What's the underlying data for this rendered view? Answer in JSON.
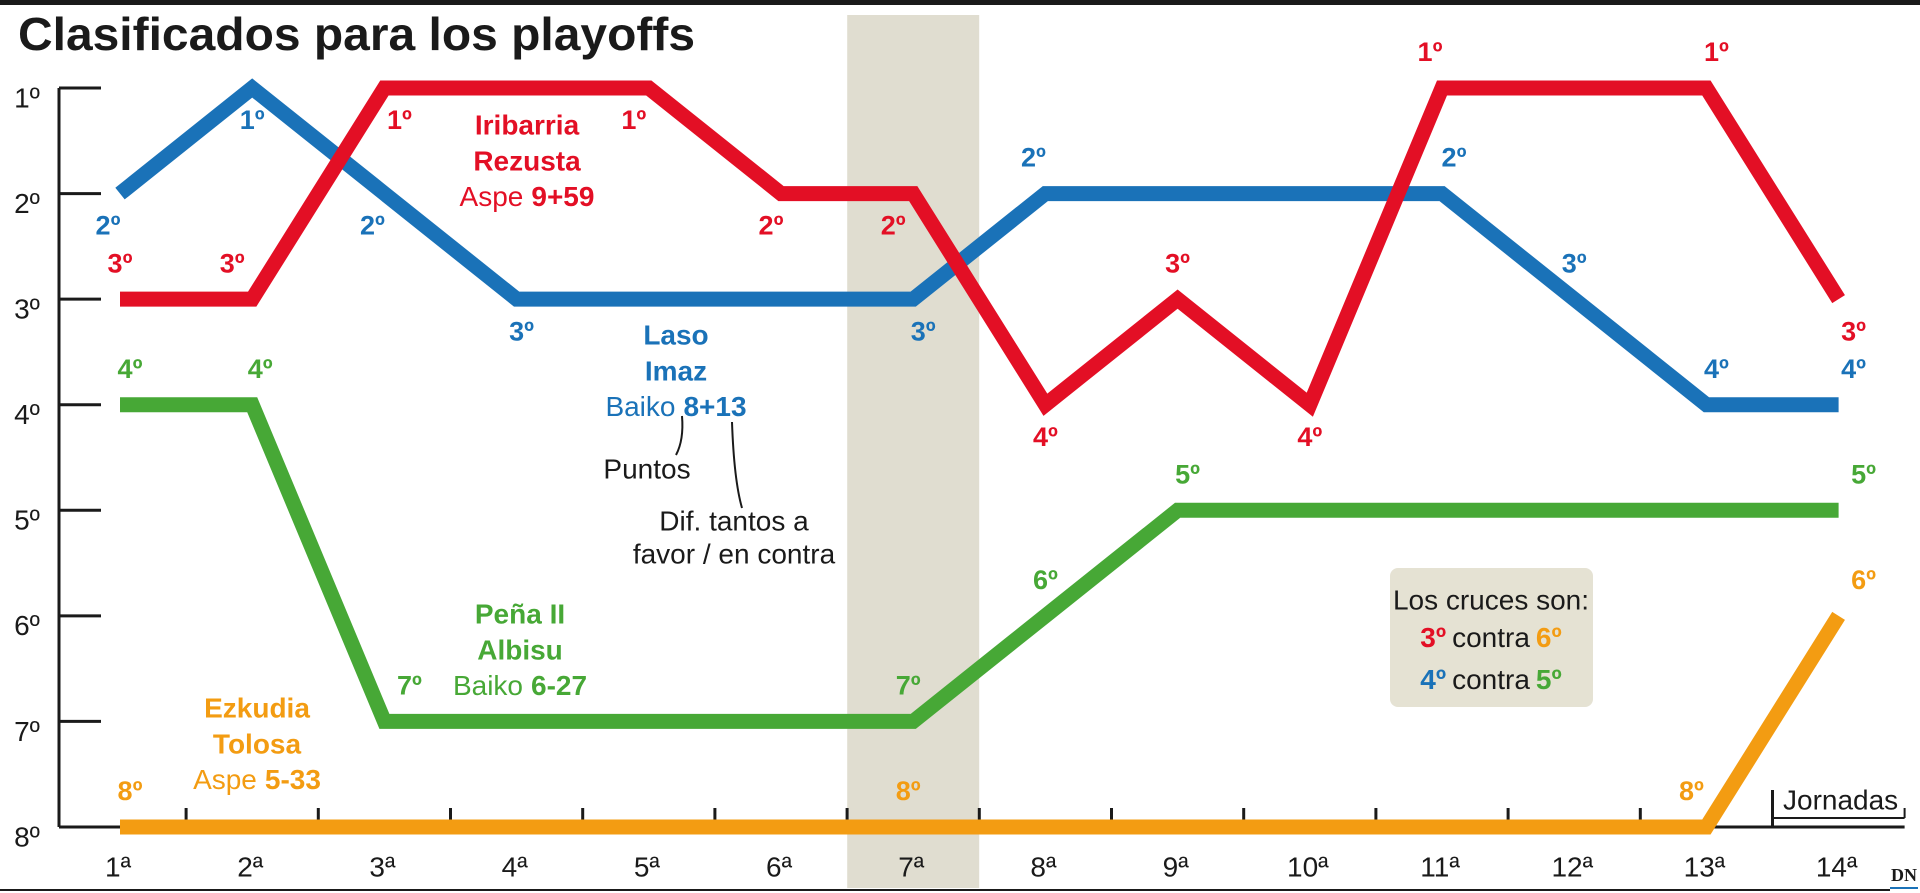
{
  "chart_data": {
    "type": "line",
    "title": "Clasificados para los playoffs",
    "x_label": "Jornadas",
    "categories": [
      "1ª",
      "2ª",
      "3ª",
      "4ª",
      "5ª",
      "6ª",
      "7ª",
      "8ª",
      "9ª",
      "10ª",
      "11ª",
      "12ª",
      "13ª",
      "14ª"
    ],
    "highlight_index": 6,
    "ylim": [
      8,
      1
    ],
    "yticks": [
      {
        "value": 1,
        "label": "1º"
      },
      {
        "value": 2,
        "label": "2º"
      },
      {
        "value": 3,
        "label": "3º"
      },
      {
        "value": 4,
        "label": "4º"
      },
      {
        "value": 5,
        "label": "5º"
      },
      {
        "value": 6,
        "label": "6º"
      },
      {
        "value": 7,
        "label": "7º"
      },
      {
        "value": 8,
        "label": "8º"
      }
    ],
    "series": [
      {
        "name_lines": [
          "Iribarria",
          "Rezusta"
        ],
        "team": "Aspe",
        "score": "9+59",
        "color": "#e30f25",
        "values": [
          3,
          3,
          1,
          1,
          1,
          2,
          2,
          4,
          3,
          4,
          1,
          1,
          1,
          3
        ],
        "value_labels": [
          "3º",
          "3º",
          "1º",
          null,
          "1º",
          "2º",
          "2º",
          "4º",
          "3º",
          "4º",
          "1º",
          null,
          "1º",
          "3º"
        ]
      },
      {
        "name_lines": [
          "Laso",
          "Imaz"
        ],
        "team": "Baiko",
        "score": "8+13",
        "color": "#1a72b8",
        "values": [
          2,
          1,
          2,
          3,
          3,
          3,
          3,
          2,
          2,
          2,
          2,
          3,
          4,
          4
        ],
        "value_labels": [
          "2º",
          "1º",
          "2º",
          "3º",
          null,
          null,
          "3º",
          "2º",
          null,
          null,
          "2º",
          "3º",
          "4º",
          "4º"
        ]
      },
      {
        "name_lines": [
          "Peña II",
          "Albisu"
        ],
        "team": "Baiko",
        "score": "6-27",
        "color": "#47a836",
        "values": [
          4,
          4,
          7,
          7,
          7,
          7,
          7,
          6,
          5,
          5,
          5,
          5,
          5,
          5
        ],
        "value_labels": [
          "4º",
          "4º",
          "7º",
          null,
          null,
          null,
          "7º",
          "6º",
          "5º",
          null,
          null,
          null,
          null,
          "5º"
        ]
      },
      {
        "name_lines": [
          "Ezkudia",
          "Tolosa"
        ],
        "team": "Aspe",
        "score": "5-33",
        "color": "#f39c12",
        "values": [
          8,
          8,
          8,
          8,
          8,
          8,
          8,
          8,
          8,
          8,
          8,
          8,
          8,
          6
        ],
        "value_labels": [
          "8º",
          null,
          null,
          null,
          null,
          null,
          "8º",
          null,
          null,
          null,
          null,
          null,
          "8º",
          "6º"
        ]
      }
    ],
    "annotations": {
      "points": "Puntos",
      "diff_lines": [
        "Dif. tantos a",
        "favor / en contra"
      ]
    },
    "crosses": {
      "title": "Los cruces son:",
      "rows": [
        [
          "3º",
          "contra",
          "6º"
        ],
        [
          "4º",
          "contra",
          "5º"
        ]
      ],
      "row_colors": [
        [
          "#e30f25",
          "#f39c12"
        ],
        [
          "#1a72b8",
          "#47a836"
        ]
      ]
    },
    "source": "DN"
  }
}
